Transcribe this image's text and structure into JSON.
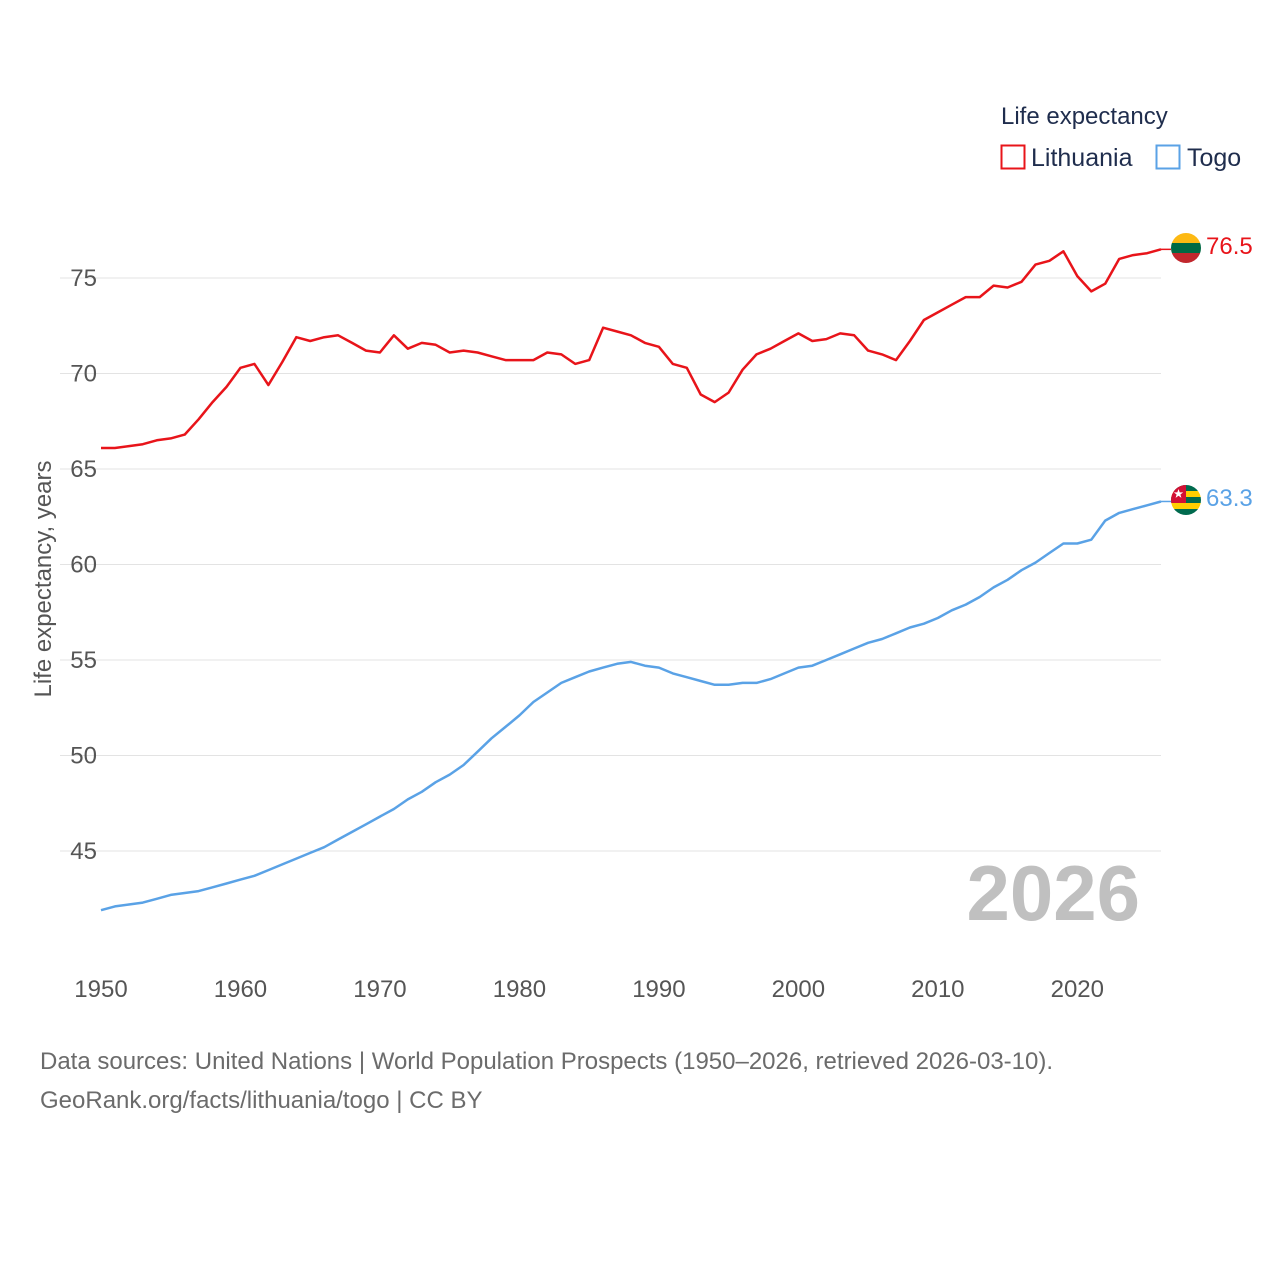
{
  "chart_data": {
    "type": "line",
    "legend_title": "Life expectancy",
    "ylabel": "Life expectancy, years",
    "xlim": [
      1950,
      2026
    ],
    "ylim": [
      40.5,
      78
    ],
    "x_ticks": [
      1950,
      1960,
      1970,
      1980,
      1990,
      2000,
      2010,
      2020
    ],
    "y_ticks": [
      45,
      50,
      55,
      60,
      65,
      70,
      75
    ],
    "current_year_label": "2026",
    "x": [
      1950,
      1951,
      1952,
      1953,
      1954,
      1955,
      1956,
      1957,
      1958,
      1959,
      1960,
      1961,
      1962,
      1963,
      1964,
      1965,
      1966,
      1967,
      1968,
      1969,
      1970,
      1971,
      1972,
      1973,
      1974,
      1975,
      1976,
      1977,
      1978,
      1979,
      1980,
      1981,
      1982,
      1983,
      1984,
      1985,
      1986,
      1987,
      1988,
      1989,
      1990,
      1991,
      1992,
      1993,
      1994,
      1995,
      1996,
      1997,
      1998,
      1999,
      2000,
      2001,
      2002,
      2003,
      2004,
      2005,
      2006,
      2007,
      2008,
      2009,
      2010,
      2011,
      2012,
      2013,
      2014,
      2015,
      2016,
      2017,
      2018,
      2019,
      2020,
      2021,
      2022,
      2023,
      2024,
      2025,
      2026
    ],
    "series": [
      {
        "name": "Lithuania",
        "color": "#e8141a",
        "end_label": "76.5",
        "flag": "lithuania-flag-icon",
        "values": [
          66.1,
          66.1,
          66.2,
          66.3,
          66.5,
          66.6,
          66.8,
          67.6,
          68.5,
          69.3,
          70.3,
          70.5,
          69.4,
          70.6,
          71.9,
          71.7,
          71.9,
          72.0,
          71.6,
          71.2,
          71.1,
          72.0,
          71.3,
          71.6,
          71.5,
          71.1,
          71.2,
          71.1,
          70.9,
          70.7,
          70.7,
          70.7,
          71.1,
          71.0,
          70.5,
          70.7,
          72.4,
          72.2,
          72.0,
          71.6,
          71.4,
          70.5,
          70.3,
          68.9,
          68.5,
          69.0,
          70.2,
          71.0,
          71.3,
          71.7,
          72.1,
          71.7,
          71.8,
          72.1,
          72.0,
          71.2,
          71.0,
          70.7,
          71.7,
          72.8,
          73.2,
          73.6,
          74.0,
          74.0,
          74.6,
          74.5,
          74.8,
          75.7,
          75.9,
          76.4,
          75.1,
          74.3,
          74.7,
          76.0,
          76.2,
          76.3,
          76.5
        ]
      },
      {
        "name": "Togo",
        "color": "#5aa2e6",
        "end_label": "63.3",
        "flag": "togo-flag-icon",
        "values": [
          41.9,
          42.1,
          42.2,
          42.3,
          42.5,
          42.7,
          42.8,
          42.9,
          43.1,
          43.3,
          43.5,
          43.7,
          44.0,
          44.3,
          44.6,
          44.9,
          45.2,
          45.6,
          46.0,
          46.4,
          46.8,
          47.2,
          47.7,
          48.1,
          48.6,
          49.0,
          49.5,
          50.2,
          50.9,
          51.5,
          52.1,
          52.8,
          53.3,
          53.8,
          54.1,
          54.4,
          54.6,
          54.8,
          54.9,
          54.7,
          54.6,
          54.3,
          54.1,
          53.9,
          53.7,
          53.7,
          53.8,
          53.8,
          54.0,
          54.3,
          54.6,
          54.7,
          55.0,
          55.3,
          55.6,
          55.9,
          56.1,
          56.4,
          56.7,
          56.9,
          57.2,
          57.6,
          57.9,
          58.3,
          58.8,
          59.2,
          59.7,
          60.1,
          60.6,
          61.1,
          61.1,
          61.3,
          62.3,
          62.7,
          62.9,
          63.1,
          63.3
        ]
      }
    ]
  },
  "footer": {
    "line1": "Data sources: United Nations | World Population Prospects (1950–2026, retrieved 2026-03-10).",
    "line2": "GeoRank.org/facts/lithuania/togo | CC BY"
  }
}
